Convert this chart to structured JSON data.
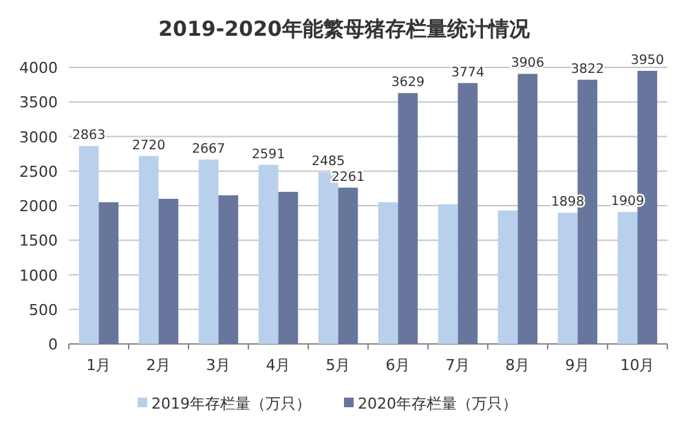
{
  "chart_data": {
    "type": "bar",
    "title": "2019-2020年能繁母猪存栏量统计情况",
    "categories": [
      "1月",
      "2月",
      "3月",
      "4月",
      "5月",
      "6月",
      "7月",
      "8月",
      "9月",
      "10月"
    ],
    "series": [
      {
        "name": "2019年存栏量（万只）",
        "color": "#b8d0ec",
        "values": [
          2863,
          2720,
          2667,
          2591,
          2485,
          2050,
          2020,
          1930,
          1898,
          1909
        ],
        "value_labels": [
          "2863",
          "2720",
          "2667",
          "2591",
          "2485",
          null,
          null,
          null,
          "1898",
          "1909"
        ]
      },
      {
        "name": "2020年存栏量（万只）",
        "color": "#68769e",
        "values": [
          2050,
          2100,
          2150,
          2200,
          2261,
          3629,
          3774,
          3906,
          3822,
          3950
        ],
        "value_labels": [
          null,
          null,
          null,
          null,
          "2261",
          "3629",
          "3774",
          "3906",
          "3822",
          "3950"
        ]
      }
    ],
    "ylim": [
      0,
      4000
    ],
    "yticks": [
      0,
      500,
      1000,
      1500,
      2000,
      2500,
      3000,
      3500,
      4000
    ],
    "grid": "y",
    "legend": "bottom"
  }
}
